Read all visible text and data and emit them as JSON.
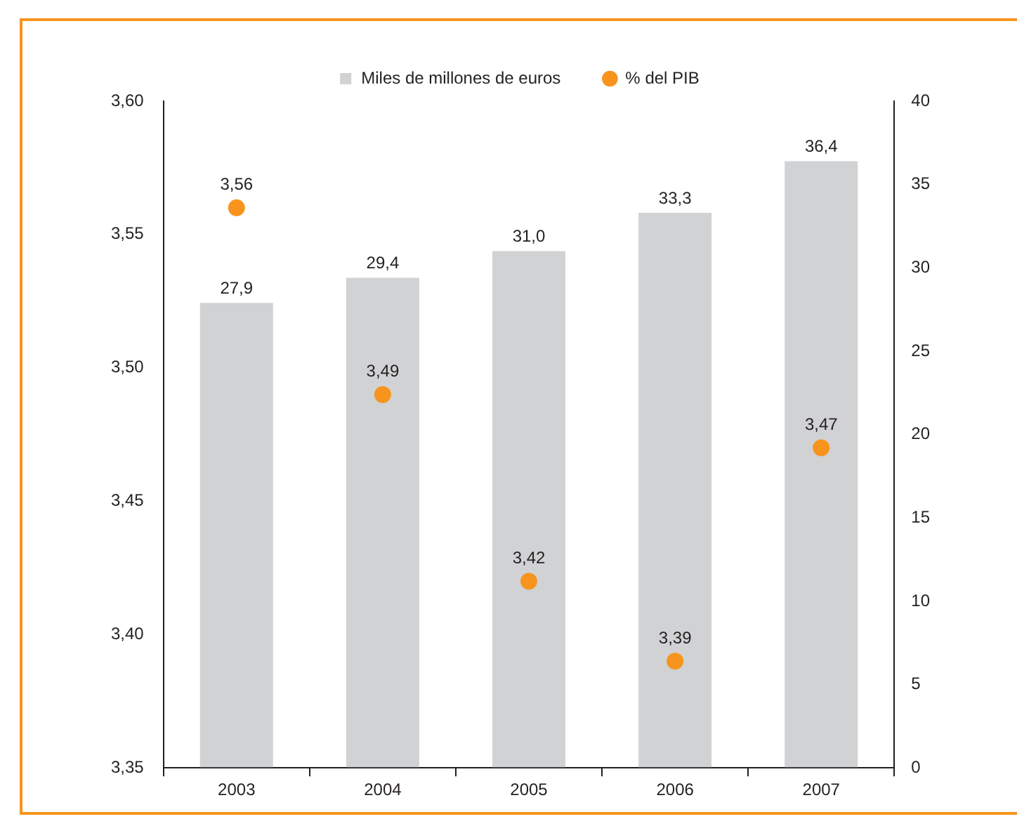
{
  "chart_data": {
    "type": "bar",
    "categories": [
      "2003",
      "2004",
      "2005",
      "2006",
      "2007"
    ],
    "series": [
      {
        "name": "Miles de millones de euros",
        "axis": "y2",
        "color": "#d1d2d4",
        "values": [
          27.9,
          29.4,
          31.0,
          33.3,
          36.4
        ],
        "value_labels": [
          "27,9",
          "29,4",
          "31,0",
          "33,3",
          "36,4"
        ]
      },
      {
        "name": "% del PIB",
        "type": "scatter",
        "axis": "y",
        "color": "#f7941d",
        "values": [
          3.56,
          3.49,
          3.42,
          3.39,
          3.47
        ],
        "value_labels": [
          "3,56",
          "3,49",
          "3,42",
          "3,39",
          "3,47"
        ]
      }
    ],
    "ylim": [
      3.35,
      3.6
    ],
    "yticks": [
      {
        "value": 3.35,
        "label": "3,35"
      },
      {
        "value": 3.4,
        "label": "3,40"
      },
      {
        "value": 3.45,
        "label": "3,45"
      },
      {
        "value": 3.5,
        "label": "3,50"
      },
      {
        "value": 3.55,
        "label": "3,55"
      },
      {
        "value": 3.6,
        "label": "3,60"
      }
    ],
    "y2lim": [
      0,
      40
    ],
    "y2ticks": [
      0,
      5,
      10,
      15,
      20,
      25,
      30,
      35,
      40
    ],
    "legend": "top",
    "marker": "circle",
    "grid": false
  }
}
